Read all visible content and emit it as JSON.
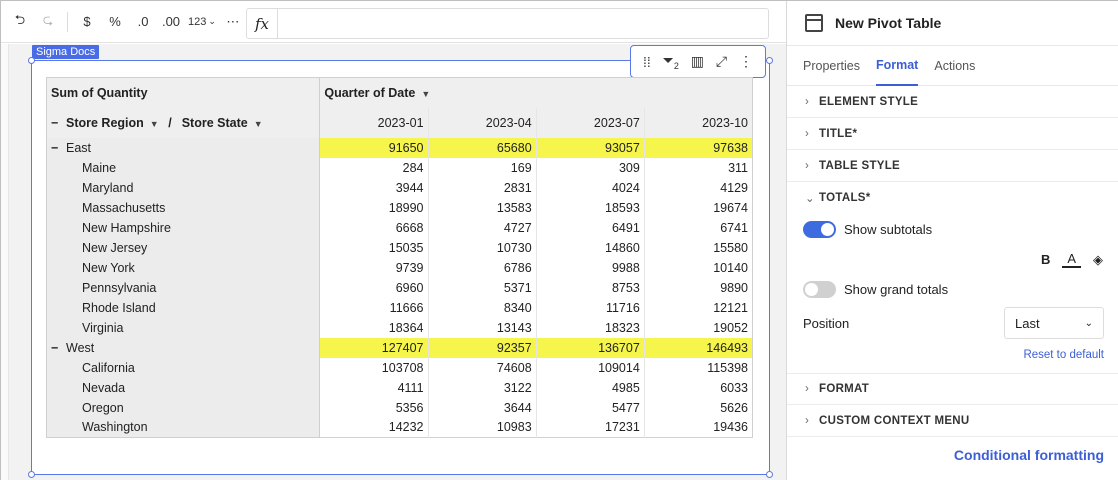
{
  "toolbar": {
    "undo": "⮌",
    "redo": "⮎",
    "currency": "$",
    "percent": "%",
    "dec_less": ".0",
    "dec_more": ".00",
    "format": "123",
    "more": "⋯",
    "fx": "fx"
  },
  "canvas": {
    "element_tag": "Sigma Docs"
  },
  "float_toolbar": {
    "drag": "⁞⁞",
    "filter_badge": "2"
  },
  "pivot": {
    "measure": "Sum of Quantity",
    "column_field": "Quarter of Date",
    "row_field_1": "Store Region",
    "row_sep": "/",
    "row_field_2": "Store State",
    "columns": [
      "2023-01",
      "2023-04",
      "2023-07",
      "2023-10"
    ],
    "groups": [
      {
        "name": "East",
        "totals": [
          "91650",
          "65680",
          "93057",
          "97638"
        ],
        "rows": [
          {
            "label": "Maine",
            "values": [
              "284",
              "169",
              "309",
              "311"
            ]
          },
          {
            "label": "Maryland",
            "values": [
              "3944",
              "2831",
              "4024",
              "4129"
            ]
          },
          {
            "label": "Massachusetts",
            "values": [
              "18990",
              "13583",
              "18593",
              "19674"
            ]
          },
          {
            "label": "New Hampshire",
            "values": [
              "6668",
              "4727",
              "6491",
              "6741"
            ]
          },
          {
            "label": "New Jersey",
            "values": [
              "15035",
              "10730",
              "14860",
              "15580"
            ]
          },
          {
            "label": "New York",
            "values": [
              "9739",
              "6786",
              "9988",
              "10140"
            ]
          },
          {
            "label": "Pennsylvania",
            "values": [
              "6960",
              "5371",
              "8753",
              "9890"
            ]
          },
          {
            "label": "Rhode Island",
            "values": [
              "11666",
              "8340",
              "11716",
              "12121"
            ]
          },
          {
            "label": "Virginia",
            "values": [
              "18364",
              "13143",
              "18323",
              "19052"
            ]
          }
        ]
      },
      {
        "name": "West",
        "totals": [
          "127407",
          "92357",
          "136707",
          "146493"
        ],
        "rows": [
          {
            "label": "California",
            "values": [
              "103708",
              "74608",
              "109014",
              "115398"
            ]
          },
          {
            "label": "Nevada",
            "values": [
              "4111",
              "3122",
              "4985",
              "6033"
            ]
          },
          {
            "label": "Oregon",
            "values": [
              "5356",
              "3644",
              "5477",
              "5626"
            ]
          },
          {
            "label": "Washington",
            "values": [
              "14232",
              "10983",
              "17231",
              "19436"
            ]
          }
        ]
      }
    ]
  },
  "panel": {
    "title": "New Pivot Table",
    "tabs": [
      "Properties",
      "Format",
      "Actions"
    ],
    "sections": {
      "element_style": "ELEMENT STYLE",
      "title": "TITLE*",
      "table_style": "TABLE STYLE",
      "totals": "TOTALS*",
      "format": "FORMAT",
      "custom_context_menu": "CUSTOM CONTEXT MENU"
    },
    "show_subtotals": "Show subtotals",
    "show_grand_totals": "Show grand totals",
    "bold": "B",
    "text_color": "A",
    "position_label": "Position",
    "position_value": "Last",
    "reset": "Reset to default",
    "conditional_formatting": "Conditional formatting"
  },
  "colors": {
    "accent": "#3d5fd6",
    "subtotal_highlight": "#f6f54c",
    "selection": "#5b78e8"
  }
}
